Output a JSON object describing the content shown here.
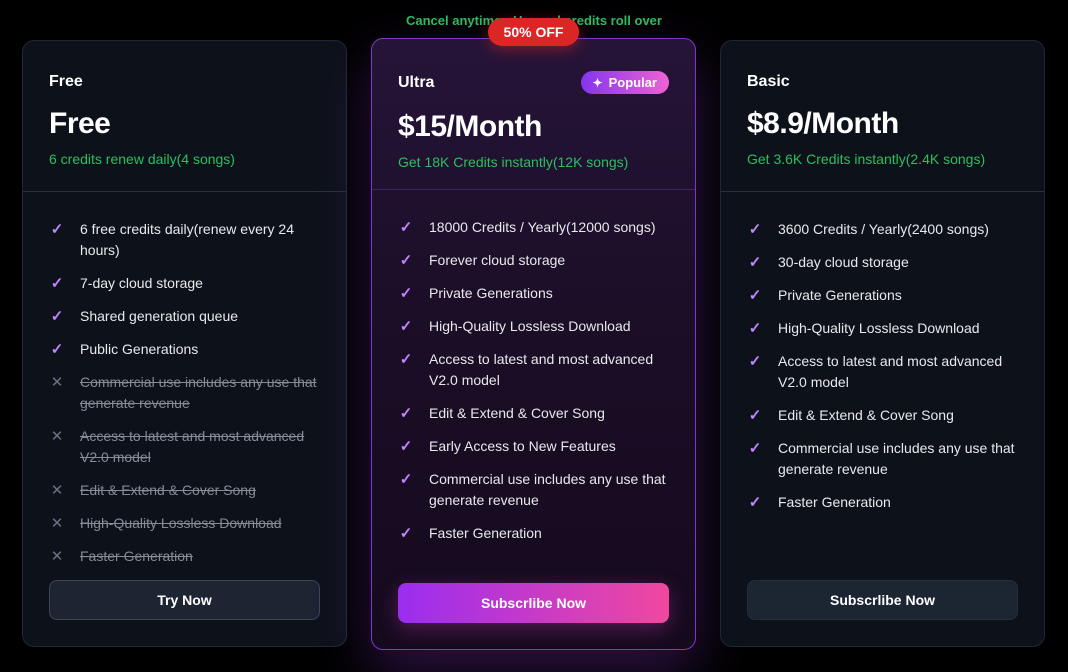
{
  "top_note": "Cancel anytime • Unused credits roll over",
  "icons": {
    "check": "✓",
    "cross": "✕",
    "sparkle": "✦"
  },
  "colors": {
    "note_green": "#2bbf5f",
    "check_purple": "#c084fc",
    "discount_red": "#dc2626",
    "cta_gradient_purple": "#9b2df0",
    "cta_gradient_pink": "#f0489f",
    "ultra_border_purple": "#8036c9"
  },
  "cards": [
    {
      "id": "free",
      "name": "Free",
      "price": "Free",
      "subtitle": "6 credits renew daily(4 songs)",
      "cta": "Try Now",
      "features": [
        {
          "text": "6 free credits daily(renew every 24 hours)",
          "included": true
        },
        {
          "text": "7-day cloud storage",
          "included": true
        },
        {
          "text": "Shared generation queue",
          "included": true
        },
        {
          "text": "Public Generations",
          "included": true
        },
        {
          "text": "Commercial use includes any use that generate revenue",
          "included": false
        },
        {
          "text": "Access to latest and most advanced V2.0 model",
          "included": false
        },
        {
          "text": "Edit & Extend & Cover Song",
          "included": false
        },
        {
          "text": "High-Quality Lossless Download",
          "included": false
        },
        {
          "text": "Faster Generation",
          "included": false
        }
      ]
    },
    {
      "id": "ultra",
      "name": "Ultra",
      "discount_badge": "50% OFF",
      "popular_badge": "Popular",
      "price": "$15/Month",
      "subtitle": "Get 18K Credits instantly(12K songs)",
      "cta": "Subscrlibe Now",
      "features": [
        {
          "text": "18000 Credits / Yearly(12000 songs)",
          "included": true
        },
        {
          "text": "Forever cloud storage",
          "included": true
        },
        {
          "text": "Private Generations",
          "included": true
        },
        {
          "text": "High-Quality Lossless Download",
          "included": true
        },
        {
          "text": "Access to latest and most advanced V2.0 model",
          "included": true
        },
        {
          "text": "Edit & Extend & Cover Song",
          "included": true
        },
        {
          "text": "Early Access to New Features",
          "included": true
        },
        {
          "text": "Commercial use includes any use that generate revenue",
          "included": true
        },
        {
          "text": "Faster Generation",
          "included": true
        }
      ]
    },
    {
      "id": "basic",
      "name": "Basic",
      "price": "$8.9/Month",
      "subtitle": "Get 3.6K Credits instantly(2.4K songs)",
      "cta": "Subscrlibe Now",
      "features": [
        {
          "text": "3600 Credits / Yearly(2400 songs)",
          "included": true
        },
        {
          "text": "30-day cloud storage",
          "included": true
        },
        {
          "text": "Private Generations",
          "included": true
        },
        {
          "text": "High-Quality Lossless Download",
          "included": true
        },
        {
          "text": "Access to latest and most advanced V2.0 model",
          "included": true
        },
        {
          "text": "Edit & Extend & Cover Song",
          "included": true
        },
        {
          "text": "Commercial use includes any use that generate revenue",
          "included": true
        },
        {
          "text": "Faster Generation",
          "included": true
        }
      ]
    }
  ]
}
